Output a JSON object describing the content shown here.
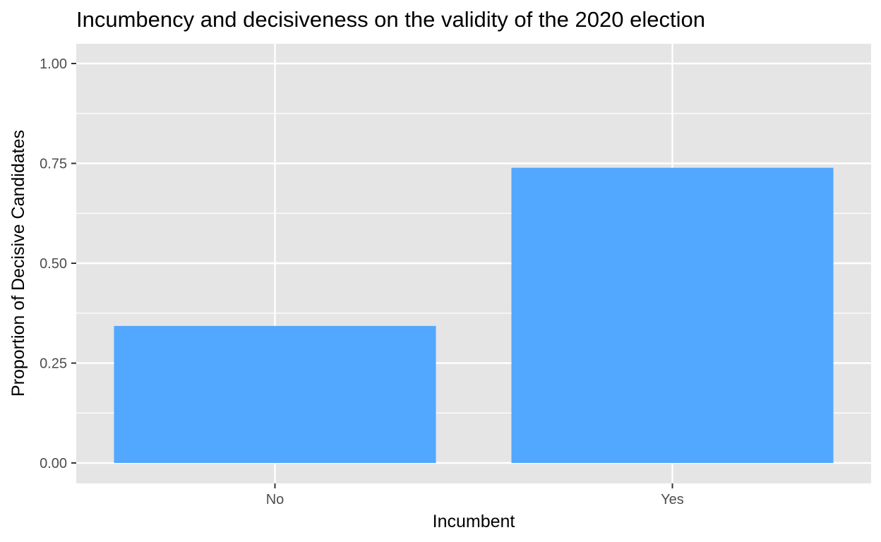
{
  "chart_data": {
    "type": "bar",
    "title": "Incumbency and decisiveness on the validity of the 2020 election",
    "xlabel": "Incumbent",
    "ylabel": "Proportion of Decisive Candidates",
    "categories": [
      "No",
      "Yes"
    ],
    "values": [
      0.343,
      0.739
    ],
    "ylim": [
      0,
      1.05
    ],
    "yticks": [
      0,
      0.25,
      0.5,
      0.75,
      1.0
    ],
    "ytick_labels": [
      "0.00",
      "0.25",
      "0.50",
      "0.75",
      "1.00"
    ],
    "grid": true,
    "legend": "none",
    "colors": {
      "bar": "#52a7ff",
      "panel": "#e5e5e5",
      "grid": "#ffffff",
      "tick": "#333333"
    }
  }
}
